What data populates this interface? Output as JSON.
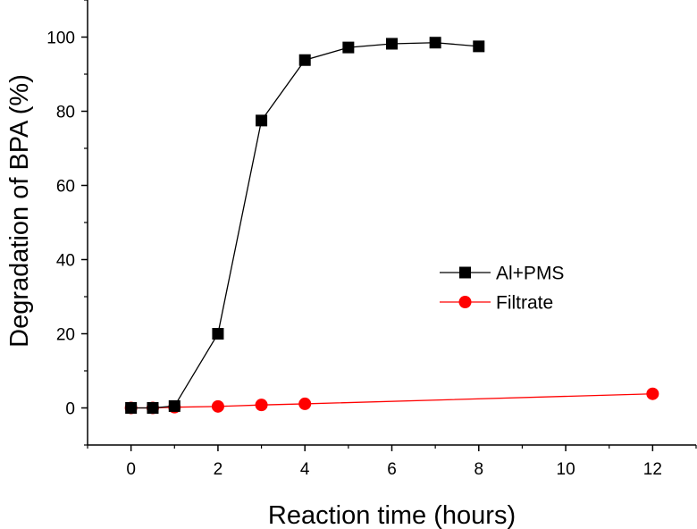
{
  "chart_data": {
    "type": "line",
    "xlabel": "Reaction time (hours)",
    "ylabel": "Degradation of BPA (%)",
    "xlim": [
      -1,
      13
    ],
    "ylim": [
      -10,
      110
    ],
    "xticks": [
      0,
      2,
      4,
      6,
      8,
      10,
      12
    ],
    "xtick_labels": [
      "0",
      "2",
      "4",
      "6",
      "8",
      "10",
      "12"
    ],
    "yticks": [
      0,
      20,
      40,
      60,
      80,
      100
    ],
    "ytick_labels": [
      "0",
      "20",
      "40",
      "60",
      "80",
      "100"
    ],
    "legend_position": "right",
    "series": [
      {
        "name": "Al+PMS",
        "color": "#000000",
        "marker": "square",
        "x": [
          0,
          0.5,
          1,
          2,
          3,
          4,
          5,
          6,
          7,
          8
        ],
        "y": [
          0,
          0,
          0.5,
          20,
          77.5,
          93.8,
          97.2,
          98.2,
          98.5,
          97.5
        ]
      },
      {
        "name": "Filtrate",
        "color": "#ff0000",
        "marker": "circle",
        "x": [
          0,
          0.5,
          1,
          2,
          3,
          4,
          12
        ],
        "y": [
          0,
          0,
          0.2,
          0.4,
          0.8,
          1.1,
          3.8
        ]
      }
    ]
  }
}
